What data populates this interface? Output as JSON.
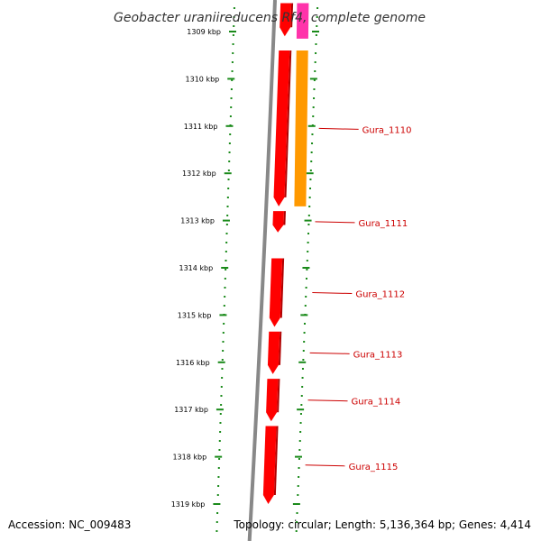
{
  "title": "Geobacter uraniireducens Rf4, complete genome",
  "accession": "Accession: NC_009483",
  "topology": "Topology: circular; Length: 5,136,364 bp; Genes: 4,414",
  "colors": {
    "gene": "#ff0000",
    "gene_side": "#b00000",
    "cds_orange": "#ff9900",
    "cds_pink": "#ff33aa",
    "backbone": "#888888",
    "tick": "#1a8a1a",
    "label": "#cc0000"
  },
  "scale": {
    "unit": "kbp",
    "ticks": [
      {
        "kbp": 1309,
        "label": "1309 kbp"
      },
      {
        "kbp": 1310,
        "label": "1310 kbp"
      },
      {
        "kbp": 1311,
        "label": "1311 kbp"
      },
      {
        "kbp": 1312,
        "label": "1312 kbp"
      },
      {
        "kbp": 1313,
        "label": "1313 kbp"
      },
      {
        "kbp": 1314,
        "label": "1314 kbp"
      },
      {
        "kbp": 1315,
        "label": "1315 kbp"
      },
      {
        "kbp": 1316,
        "label": "1316 kbp"
      },
      {
        "kbp": 1317,
        "label": "1317 kbp"
      },
      {
        "kbp": 1318,
        "label": "1318 kbp"
      },
      {
        "kbp": 1319,
        "label": "1319 kbp"
      }
    ]
  },
  "genes": [
    {
      "start_kbp": 1308.4,
      "end_kbp": 1309.1,
      "strand": "reverse"
    },
    {
      "start_kbp": 1309.4,
      "end_kbp": 1312.7,
      "strand": "reverse",
      "label": "Gura_1110"
    },
    {
      "start_kbp": 1312.8,
      "end_kbp": 1313.25,
      "strand": "reverse",
      "label": "Gura_1111"
    },
    {
      "start_kbp": 1313.8,
      "end_kbp": 1315.25,
      "strand": "reverse",
      "label": "Gura_1112"
    },
    {
      "start_kbp": 1315.35,
      "end_kbp": 1316.25,
      "strand": "reverse",
      "label": "Gura_1113"
    },
    {
      "start_kbp": 1316.35,
      "end_kbp": 1317.25,
      "strand": "reverse",
      "label": "Gura_1114"
    },
    {
      "start_kbp": 1317.35,
      "end_kbp": 1319.0,
      "strand": "reverse",
      "label": "Gura_1115"
    }
  ],
  "cds": [
    {
      "start_kbp": 1308.4,
      "end_kbp": 1309.15,
      "color": "pink"
    },
    {
      "start_kbp": 1309.4,
      "end_kbp": 1312.7,
      "color": "orange"
    }
  ]
}
